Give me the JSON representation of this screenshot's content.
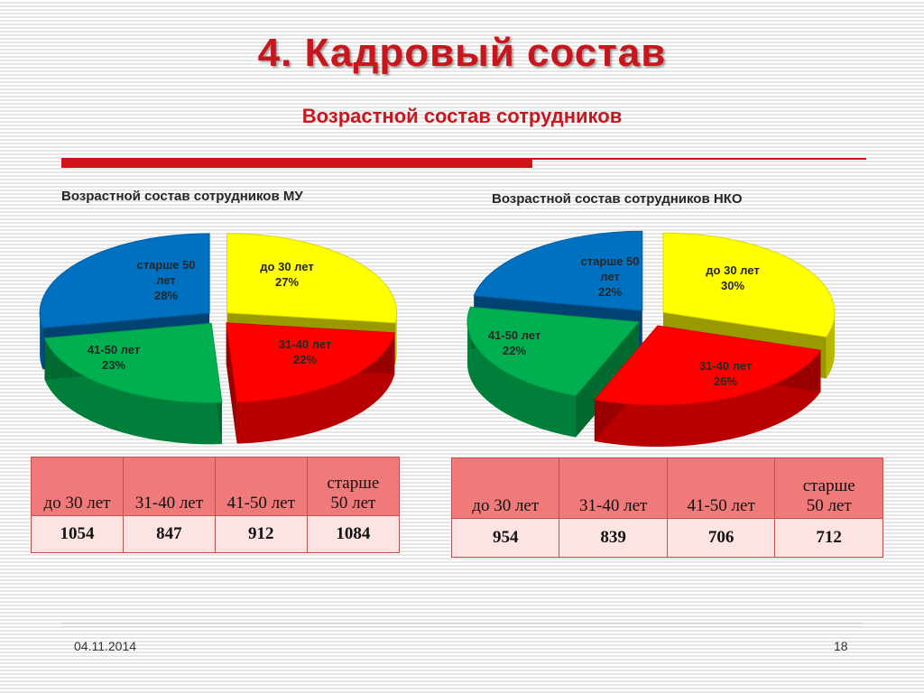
{
  "slide": {
    "title": "4. Кадровый состав",
    "subtitle": "Возрастной состав сотрудников",
    "date": "04.11.2014",
    "page_number": "18"
  },
  "chart_data": [
    {
      "type": "pie",
      "title": "Возрастной состав сотрудников МУ",
      "slices": [
        {
          "label": "до 30 лет",
          "percent_label": "27%",
          "value": 27,
          "color": "#ffff00"
        },
        {
          "label": "31-40 лет",
          "percent_label": "22%",
          "value": 22,
          "color": "#ff0000"
        },
        {
          "label": "41-50 лет",
          "percent_label": "23%",
          "value": 23,
          "color": "#00b050"
        },
        {
          "label": "старше 50 лет",
          "percent_label": "28%",
          "value": 28,
          "color": "#0070c0"
        }
      ]
    },
    {
      "type": "pie",
      "title": "Возрастной состав сотрудников НКО",
      "slices": [
        {
          "label": "до 30 лет",
          "percent_label": "30%",
          "value": 30,
          "color": "#ffff00"
        },
        {
          "label": "31-40 лет",
          "percent_label": "26%",
          "value": 26,
          "color": "#ff0000"
        },
        {
          "label": "41-50 лет",
          "percent_label": "22%",
          "value": 22,
          "color": "#00b050"
        },
        {
          "label": "старше 50 лет",
          "percent_label": "22%",
          "value": 22,
          "color": "#0070c0"
        }
      ]
    },
    {
      "type": "table",
      "columns": [
        "до 30 лет",
        "31-40 лет",
        "41-50 лет",
        "старше 50 лет"
      ],
      "values": [
        "1054",
        "847",
        "912",
        "1084"
      ]
    },
    {
      "type": "table",
      "columns": [
        "до 30 лет",
        "31-40 лет",
        "41-50 лет",
        "старше 50 лет"
      ],
      "values": [
        "954",
        "839",
        "706",
        "712"
      ]
    }
  ],
  "tables": {
    "mu": {
      "headers": [
        "до 30 лет",
        "31-40 лет",
        "41-50 лет",
        "старше 50 лет"
      ],
      "values": [
        "1054",
        "847",
        "912",
        "1084"
      ]
    },
    "nko": {
      "headers": [
        "до 30 лет",
        "31-40 лет",
        "41-50 лет",
        "старше 50 лет"
      ],
      "values": [
        "954",
        "839",
        "706",
        "712"
      ]
    }
  }
}
